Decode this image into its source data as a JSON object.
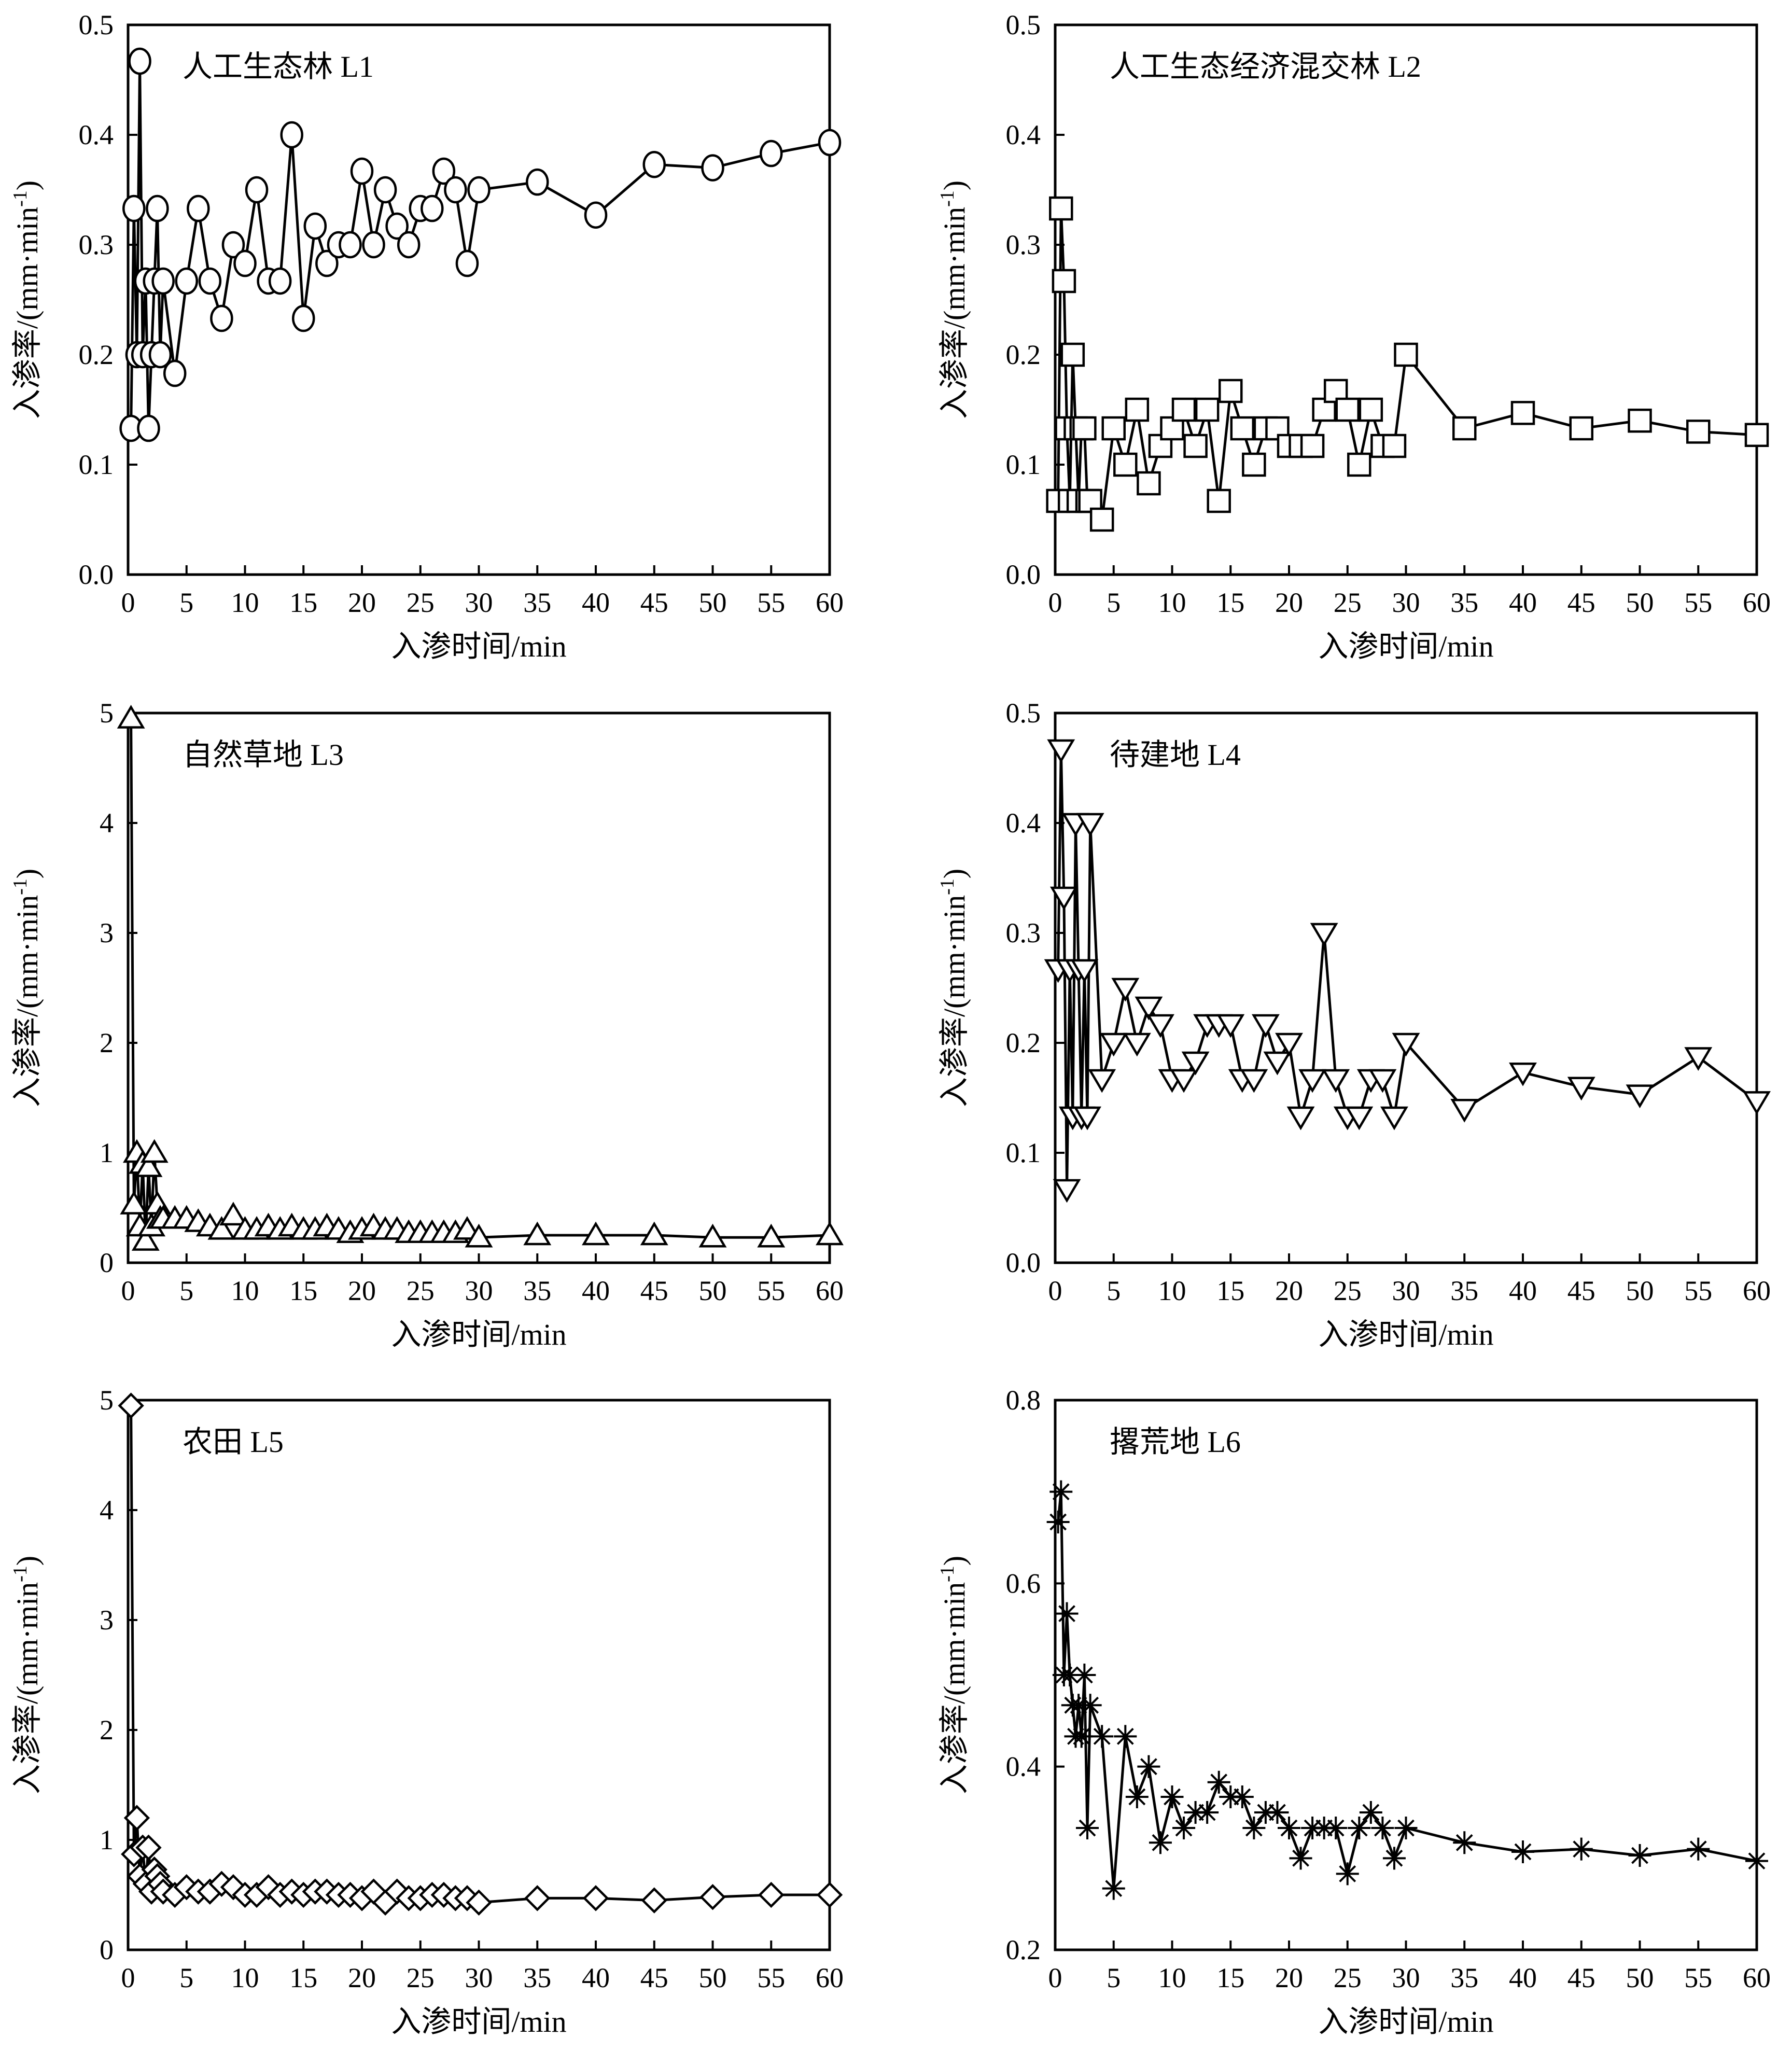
{
  "colors": {
    "line": "#000000",
    "marker_fill": "#ffffff",
    "background": "#ffffff"
  },
  "chart_data": [
    {
      "type": "line",
      "title": "人工生态林 L1",
      "marker": "circle",
      "xlabel": "入渗时间/min",
      "ylabel": "入渗率/(mm·min-1)",
      "xlim": [
        0,
        60
      ],
      "ylim": [
        0,
        0.5
      ],
      "xticks": [
        0,
        5,
        10,
        15,
        20,
        25,
        30,
        35,
        40,
        45,
        50,
        55,
        60
      ],
      "yticks": [
        0.0,
        0.1,
        0.2,
        0.3,
        0.4,
        0.5
      ],
      "ytick_labels": [
        "0.0",
        "0.1",
        "0.2",
        "0.3",
        "0.4",
        "0.5"
      ],
      "x": [
        0.25,
        0.5,
        0.75,
        1,
        1.25,
        1.5,
        1.75,
        2,
        2.25,
        2.5,
        2.75,
        3,
        4,
        5,
        6,
        7,
        8,
        9,
        10,
        11,
        12,
        13,
        14,
        15,
        16,
        17,
        18,
        19,
        20,
        21,
        22,
        23,
        24,
        25,
        26,
        27,
        28,
        29,
        30,
        35,
        40,
        45,
        50,
        55,
        60
      ],
      "y": [
        0.133,
        0.333,
        0.2,
        0.467,
        0.2,
        0.267,
        0.133,
        0.2,
        0.267,
        0.333,
        0.2,
        0.267,
        0.183,
        0.267,
        0.333,
        0.267,
        0.233,
        0.3,
        0.283,
        0.35,
        0.267,
        0.267,
        0.4,
        0.233,
        0.317,
        0.283,
        0.3,
        0.3,
        0.367,
        0.3,
        0.35,
        0.317,
        0.3,
        0.333,
        0.333,
        0.367,
        0.35,
        0.283,
        0.35,
        0.357,
        0.327,
        0.373,
        0.37,
        0.383,
        0.393
      ]
    },
    {
      "type": "line",
      "title": "人工生态经济混交林 L2",
      "marker": "square",
      "xlabel": "入渗时间/min",
      "ylabel": "入渗率/(mm·min-1)",
      "xlim": [
        0,
        60
      ],
      "ylim": [
        0,
        0.5
      ],
      "xticks": [
        0,
        5,
        10,
        15,
        20,
        25,
        30,
        35,
        40,
        45,
        50,
        55,
        60
      ],
      "yticks": [
        0.0,
        0.1,
        0.2,
        0.3,
        0.4,
        0.5
      ],
      "ytick_labels": [
        "0.0",
        "0.1",
        "0.2",
        "0.3",
        "0.4",
        "0.5"
      ],
      "x": [
        0.25,
        0.5,
        0.75,
        1,
        1.25,
        1.5,
        1.75,
        2,
        2.25,
        2.5,
        2.75,
        3,
        4,
        5,
        6,
        7,
        8,
        9,
        10,
        11,
        12,
        13,
        14,
        15,
        16,
        17,
        18,
        19,
        20,
        21,
        22,
        23,
        24,
        25,
        26,
        27,
        28,
        29,
        30,
        35,
        40,
        45,
        50,
        55,
        60
      ],
      "y": [
        0.067,
        0.333,
        0.267,
        0.133,
        0.067,
        0.2,
        0.133,
        0.067,
        0.133,
        0.133,
        0.067,
        0.067,
        0.05,
        0.133,
        0.1,
        0.15,
        0.083,
        0.117,
        0.133,
        0.15,
        0.117,
        0.15,
        0.067,
        0.167,
        0.133,
        0.1,
        0.133,
        0.133,
        0.117,
        0.117,
        0.117,
        0.15,
        0.167,
        0.15,
        0.1,
        0.15,
        0.117,
        0.117,
        0.2,
        0.133,
        0.147,
        0.133,
        0.14,
        0.13,
        0.127
      ]
    },
    {
      "type": "line",
      "title": "自然草地 L3",
      "marker": "triangle-up",
      "xlabel": "入渗时间/min",
      "ylabel": "入渗率/(mm·min-1)",
      "xlim": [
        0,
        60
      ],
      "ylim": [
        0,
        5
      ],
      "xticks": [
        0,
        5,
        10,
        15,
        20,
        25,
        30,
        35,
        40,
        45,
        50,
        55,
        60
      ],
      "yticks": [
        0,
        1,
        2,
        3,
        4,
        5
      ],
      "ytick_labels": [
        "0",
        "1",
        "2",
        "3",
        "4",
        "5"
      ],
      "x": [
        0.25,
        0.5,
        0.75,
        1,
        1.25,
        1.5,
        1.75,
        2,
        2.25,
        2.5,
        2.75,
        3,
        4,
        5,
        6,
        7,
        8,
        9,
        10,
        11,
        12,
        13,
        14,
        15,
        16,
        17,
        18,
        19,
        20,
        21,
        22,
        23,
        24,
        25,
        26,
        27,
        28,
        29,
        30,
        35,
        40,
        45,
        50,
        55,
        60
      ],
      "y": [
        4.95,
        0.53,
        1.0,
        0.33,
        0.9,
        0.2,
        0.87,
        0.33,
        1.0,
        0.53,
        0.4,
        0.4,
        0.4,
        0.4,
        0.37,
        0.33,
        0.3,
        0.43,
        0.3,
        0.3,
        0.33,
        0.3,
        0.33,
        0.3,
        0.3,
        0.33,
        0.3,
        0.27,
        0.3,
        0.33,
        0.3,
        0.3,
        0.27,
        0.27,
        0.27,
        0.27,
        0.27,
        0.3,
        0.23,
        0.25,
        0.25,
        0.25,
        0.23,
        0.23,
        0.25
      ]
    },
    {
      "type": "line",
      "title": "待建地 L4",
      "marker": "triangle-down",
      "xlabel": "入渗时间/min",
      "ylabel": "入渗率/(mm·min-1)",
      "xlim": [
        0,
        60
      ],
      "ylim": [
        0,
        0.5
      ],
      "xticks": [
        0,
        5,
        10,
        15,
        20,
        25,
        30,
        35,
        40,
        45,
        50,
        55,
        60
      ],
      "yticks": [
        0.0,
        0.1,
        0.2,
        0.3,
        0.4,
        0.5
      ],
      "ytick_labels": [
        "0.0",
        "0.1",
        "0.2",
        "0.3",
        "0.4",
        "0.5"
      ],
      "x": [
        0.25,
        0.5,
        0.75,
        1,
        1.25,
        1.5,
        1.75,
        2,
        2.25,
        2.5,
        2.75,
        3,
        4,
        5,
        6,
        7,
        8,
        9,
        10,
        11,
        12,
        13,
        14,
        15,
        16,
        17,
        18,
        19,
        20,
        21,
        22,
        23,
        24,
        25,
        26,
        27,
        28,
        29,
        30,
        35,
        40,
        45,
        50,
        55,
        60
      ],
      "y": [
        0.267,
        0.467,
        0.333,
        0.067,
        0.267,
        0.133,
        0.4,
        0.267,
        0.133,
        0.267,
        0.133,
        0.4,
        0.167,
        0.2,
        0.25,
        0.2,
        0.233,
        0.217,
        0.167,
        0.167,
        0.183,
        0.217,
        0.217,
        0.217,
        0.167,
        0.167,
        0.217,
        0.183,
        0.2,
        0.133,
        0.167,
        0.3,
        0.167,
        0.133,
        0.133,
        0.167,
        0.167,
        0.133,
        0.2,
        0.14,
        0.173,
        0.16,
        0.153,
        0.187,
        0.147
      ]
    },
    {
      "type": "line",
      "title": "农田 L5",
      "marker": "diamond",
      "xlabel": "入渗时间/min",
      "ylabel": "入渗率/(mm·min-1)",
      "xlim": [
        0,
        60
      ],
      "ylim": [
        0,
        5
      ],
      "xticks": [
        0,
        5,
        10,
        15,
        20,
        25,
        30,
        35,
        40,
        45,
        50,
        55,
        60
      ],
      "yticks": [
        0,
        1,
        2,
        3,
        4,
        5
      ],
      "ytick_labels": [
        "0",
        "1",
        "2",
        "3",
        "4",
        "5"
      ],
      "x": [
        0.25,
        0.5,
        0.75,
        1,
        1.25,
        1.5,
        1.75,
        2,
        2.25,
        2.5,
        2.75,
        3,
        4,
        5,
        6,
        7,
        8,
        9,
        10,
        11,
        12,
        13,
        14,
        15,
        16,
        17,
        18,
        19,
        20,
        21,
        22,
        23,
        24,
        25,
        26,
        27,
        28,
        29,
        30,
        35,
        40,
        45,
        50,
        55,
        60
      ],
      "y": [
        4.95,
        0.87,
        1.2,
        0.67,
        0.93,
        0.6,
        0.93,
        0.53,
        0.73,
        0.67,
        0.6,
        0.53,
        0.5,
        0.57,
        0.53,
        0.53,
        0.6,
        0.57,
        0.5,
        0.5,
        0.57,
        0.5,
        0.53,
        0.5,
        0.53,
        0.53,
        0.5,
        0.5,
        0.47,
        0.53,
        0.43,
        0.53,
        0.47,
        0.47,
        0.5,
        0.5,
        0.47,
        0.47,
        0.43,
        0.47,
        0.47,
        0.45,
        0.48,
        0.5,
        0.5
      ]
    },
    {
      "type": "line",
      "title": "撂荒地 L6",
      "marker": "asterisk",
      "xlabel": "入渗时间/min",
      "ylabel": "入渗率/(mm·min-1)",
      "xlim": [
        0,
        60
      ],
      "ylim": [
        0.2,
        0.8
      ],
      "xticks": [
        0,
        5,
        10,
        15,
        20,
        25,
        30,
        35,
        40,
        45,
        50,
        55,
        60
      ],
      "yticks": [
        0.2,
        0.4,
        0.6,
        0.8
      ],
      "ytick_labels": [
        "0.2",
        "0.4",
        "0.6",
        "0.8"
      ],
      "x": [
        0.25,
        0.5,
        0.75,
        1,
        1.25,
        1.5,
        1.75,
        2,
        2.25,
        2.5,
        2.75,
        3,
        4,
        5,
        6,
        7,
        8,
        9,
        10,
        11,
        12,
        13,
        14,
        15,
        16,
        17,
        18,
        19,
        20,
        21,
        22,
        23,
        24,
        25,
        26,
        27,
        28,
        29,
        30,
        35,
        40,
        45,
        50,
        55,
        60
      ],
      "y": [
        0.667,
        0.7,
        0.5,
        0.567,
        0.5,
        0.467,
        0.433,
        0.467,
        0.433,
        0.5,
        0.333,
        0.467,
        0.433,
        0.267,
        0.433,
        0.367,
        0.4,
        0.317,
        0.367,
        0.333,
        0.35,
        0.35,
        0.383,
        0.367,
        0.367,
        0.333,
        0.35,
        0.35,
        0.333,
        0.3,
        0.333,
        0.333,
        0.333,
        0.283,
        0.333,
        0.35,
        0.333,
        0.3,
        0.333,
        0.317,
        0.307,
        0.31,
        0.303,
        0.31,
        0.297
      ]
    }
  ]
}
